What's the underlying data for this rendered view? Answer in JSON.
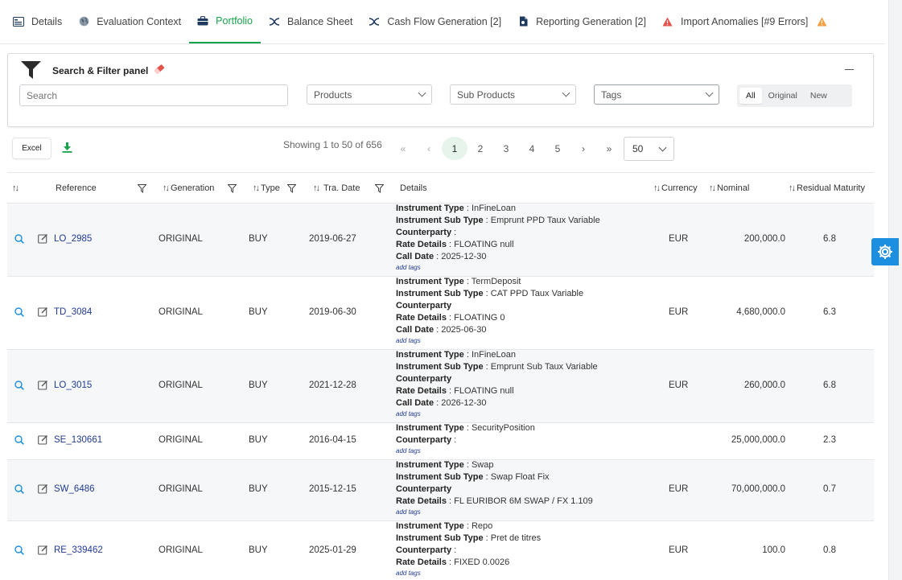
{
  "tabs": [
    {
      "label": "Details",
      "icon": "id-card-icon"
    },
    {
      "label": "Evaluation Context",
      "icon": "globe-icon"
    },
    {
      "label": "Portfolio",
      "icon": "briefcase-icon"
    },
    {
      "label": "Balance Sheet",
      "icon": "chart-icon"
    },
    {
      "label": "Cash Flow Generation [2]",
      "icon": "chart-icon"
    },
    {
      "label": "Reporting Generation [2]",
      "icon": "document-icon"
    },
    {
      "label": "Import Anomalies [#9 Errors]",
      "icon": "warning-icon"
    }
  ],
  "filter": {
    "title": "Search & Filter panel",
    "search_placeholder": "Search",
    "products": "Products",
    "sub_products": "Sub Products",
    "tags": "Tags",
    "segments": [
      "All",
      "Original",
      "New"
    ]
  },
  "toolbar": {
    "excel_label": "Excel",
    "showing": "Showing 1 to 50 of 656",
    "pages": [
      "1",
      "2",
      "3",
      "4",
      "5"
    ],
    "first": "«",
    "prev": "‹",
    "next": "›",
    "last": "»",
    "page_size": "50"
  },
  "columns": {
    "reference": "Reference",
    "generation": "Generation",
    "type": "Type",
    "tra_date": "Tra. Date",
    "details": "Details",
    "currency": "Currency",
    "nominal": "Nominal",
    "residual_maturity": "Residual Maturity"
  },
  "details_labels": {
    "instrument_type": "Instrument Type",
    "instrument_sub_type": "Instrument Sub Type",
    "counterparty": "Counterparty",
    "rate_details": "Rate Details",
    "call_date": "Call Date",
    "add_tags": "add tags"
  },
  "rows": [
    {
      "reference": "LO_2985",
      "generation": "ORIGINAL",
      "type": "BUY",
      "tra_date": "2019-06-27",
      "instrument_type": "InFineLoan",
      "instrument_sub_type": "Emprunt PPD Taux Variable",
      "rate_details": "FLOATING null",
      "call_date": "2025-12-30",
      "currency": "EUR",
      "nominal": "200,000.0",
      "residual_maturity": "6.8"
    },
    {
      "reference": "TD_3084",
      "generation": "ORIGINAL",
      "type": "BUY",
      "tra_date": "2019-06-30",
      "instrument_type": "TermDeposit",
      "instrument_sub_type": "CAT PPD Taux Variable",
      "rate_details": "FLOATING 0",
      "call_date": "2025-06-30",
      "currency": "EUR",
      "nominal": "4,680,000.0",
      "residual_maturity": "6.3"
    },
    {
      "reference": "LO_3015",
      "generation": "ORIGINAL",
      "type": "BUY",
      "tra_date": "2021-12-28",
      "instrument_type": "InFineLoan",
      "instrument_sub_type": "Emprunt Sub Taux Variable",
      "rate_details": "FLOATING null",
      "call_date": "2026-12-30",
      "currency": "EUR",
      "nominal": "260,000.0",
      "residual_maturity": "6.8"
    },
    {
      "reference": "SE_130661",
      "generation": "ORIGINAL",
      "type": "BUY",
      "tra_date": "2016-04-15",
      "instrument_type": "SecurityPosition",
      "currency": "",
      "nominal": "25,000,000.0",
      "residual_maturity": "2.3"
    },
    {
      "reference": "SW_6486",
      "generation": "ORIGINAL",
      "type": "BUY",
      "tra_date": "2015-12-15",
      "instrument_type": "Swap",
      "instrument_sub_type": "Swap Float Fix",
      "rate_details": "FL EURIBOR 6M SWAP / FX 1.109",
      "currency": "EUR",
      "nominal": "70,000,000.0",
      "residual_maturity": "0.7"
    },
    {
      "reference": "RE_339462",
      "generation": "ORIGINAL",
      "type": "BUY",
      "tra_date": "2025-01-29",
      "instrument_type": "Repo",
      "instrument_sub_type": "Pret de titres",
      "rate_details": "FIXED 0.0026",
      "currency": "EUR",
      "nominal": "100.0",
      "residual_maturity": "0.8"
    }
  ]
}
